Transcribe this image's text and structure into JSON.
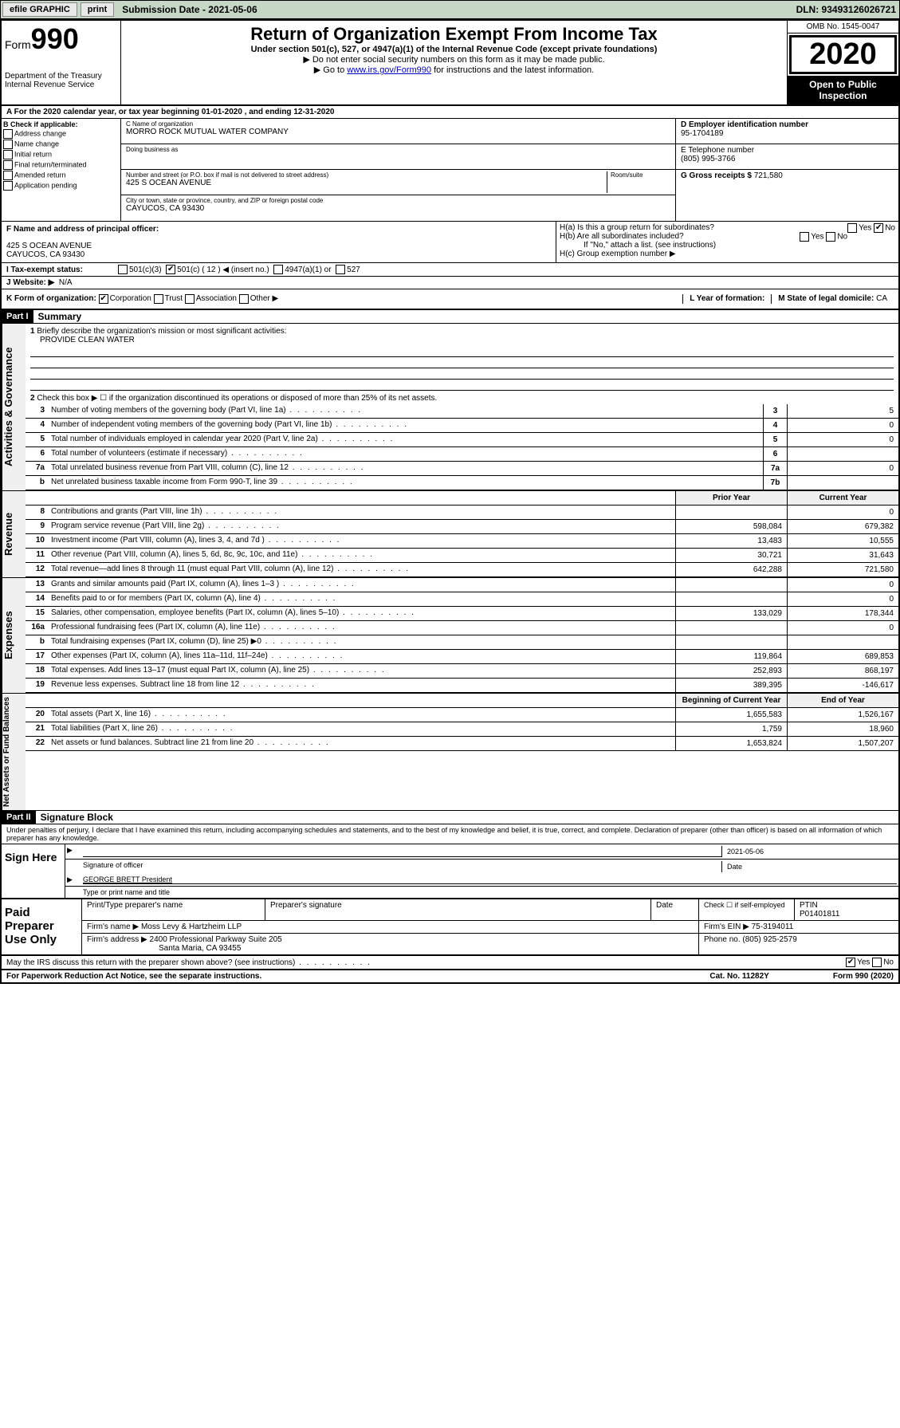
{
  "topbar": {
    "efile": "efile GRAPHIC",
    "print": "print",
    "subdate_label": "Submission Date - 2021-05-06",
    "dln": "DLN: 93493126026721"
  },
  "header": {
    "form_label": "Form",
    "form_num": "990",
    "dept": "Department of the Treasury\nInternal Revenue Service",
    "title": "Return of Organization Exempt From Income Tax",
    "subtitle": "Under section 501(c), 527, or 4947(a)(1) of the Internal Revenue Code (except private foundations)",
    "note1": "▶ Do not enter social security numbers on this form as it may be made public.",
    "note2_pre": "▶ Go to ",
    "note2_link": "www.irs.gov/Form990",
    "note2_post": " for instructions and the latest information.",
    "omb": "OMB No. 1545-0047",
    "year": "2020",
    "inspect": "Open to Public Inspection"
  },
  "row_a": "A For the 2020 calendar year, or tax year beginning 01-01-2020   , and ending 12-31-2020",
  "b": {
    "label": "B Check if applicable:",
    "items": [
      "Address change",
      "Name change",
      "Initial return",
      "Final return/terminated",
      "Amended return",
      "Application pending"
    ]
  },
  "c": {
    "name_label": "C Name of organization",
    "name": "MORRO ROCK MUTUAL WATER COMPANY",
    "dba_label": "Doing business as",
    "addr_label": "Number and street (or P.O. box if mail is not delivered to street address)",
    "room_label": "Room/suite",
    "addr": "425 S OCEAN AVENUE",
    "city_label": "City or town, state or province, country, and ZIP or foreign postal code",
    "city": "CAYUCOS, CA  93430"
  },
  "d": {
    "ein_label": "D Employer identification number",
    "ein": "95-1704189",
    "tel_label": "E Telephone number",
    "tel": "(805) 995-3766",
    "gross_label": "G Gross receipts $",
    "gross": "721,580"
  },
  "f": {
    "label": "F  Name and address of principal officer:",
    "addr1": "425 S OCEAN AVENUE",
    "addr2": "CAYUCOS, CA  93430"
  },
  "h": {
    "a_label": "H(a)  Is this a group return for subordinates?",
    "b_label": "H(b)  Are all subordinates included?",
    "b_note": "If \"No,\" attach a list. (see instructions)",
    "c_label": "H(c)  Group exemption number ▶"
  },
  "i": {
    "label": "I Tax-exempt status:",
    "opts": [
      "501(c)(3)",
      "501(c) ( 12 ) ◀ (insert no.)",
      "4947(a)(1) or",
      "527"
    ]
  },
  "j": {
    "label": "J Website: ▶",
    "val": "N/A"
  },
  "k": {
    "label": "K Form of organization:",
    "opts": [
      "Corporation",
      "Trust",
      "Association",
      "Other ▶"
    ],
    "l_label": "L Year of formation:",
    "m_label": "M State of legal domicile:",
    "m_val": "CA"
  },
  "part1": {
    "hdr": "Part I",
    "title": "Summary",
    "q1": "Briefly describe the organization's mission or most significant activities:",
    "q1_val": "PROVIDE CLEAN WATER",
    "q2": "Check this box ▶ ☐ if the organization discontinued its operations or disposed of more than 25% of its net assets.",
    "sidebars": {
      "gov": "Activities & Governance",
      "rev": "Revenue",
      "exp": "Expenses",
      "net": "Net Assets or Fund Balances"
    },
    "col_prior": "Prior Year",
    "col_curr": "Current Year",
    "col_beg": "Beginning of Current Year",
    "col_end": "End of Year",
    "lines_gov": [
      {
        "n": "3",
        "d": "Number of voting members of the governing body (Part VI, line 1a)",
        "box": "3",
        "v": "5"
      },
      {
        "n": "4",
        "d": "Number of independent voting members of the governing body (Part VI, line 1b)",
        "box": "4",
        "v": "0"
      },
      {
        "n": "5",
        "d": "Total number of individuals employed in calendar year 2020 (Part V, line 2a)",
        "box": "5",
        "v": "0"
      },
      {
        "n": "6",
        "d": "Total number of volunteers (estimate if necessary)",
        "box": "6",
        "v": ""
      },
      {
        "n": "7a",
        "d": "Total unrelated business revenue from Part VIII, column (C), line 12",
        "box": "7a",
        "v": "0"
      },
      {
        "n": "b",
        "d": "Net unrelated business taxable income from Form 990-T, line 39",
        "box": "7b",
        "v": ""
      }
    ],
    "lines_rev": [
      {
        "n": "8",
        "d": "Contributions and grants (Part VIII, line 1h)",
        "p": "",
        "c": "0"
      },
      {
        "n": "9",
        "d": "Program service revenue (Part VIII, line 2g)",
        "p": "598,084",
        "c": "679,382"
      },
      {
        "n": "10",
        "d": "Investment income (Part VIII, column (A), lines 3, 4, and 7d )",
        "p": "13,483",
        "c": "10,555"
      },
      {
        "n": "11",
        "d": "Other revenue (Part VIII, column (A), lines 5, 6d, 8c, 9c, 10c, and 11e)",
        "p": "30,721",
        "c": "31,643"
      },
      {
        "n": "12",
        "d": "Total revenue—add lines 8 through 11 (must equal Part VIII, column (A), line 12)",
        "p": "642,288",
        "c": "721,580"
      }
    ],
    "lines_exp": [
      {
        "n": "13",
        "d": "Grants and similar amounts paid (Part IX, column (A), lines 1–3 )",
        "p": "",
        "c": "0"
      },
      {
        "n": "14",
        "d": "Benefits paid to or for members (Part IX, column (A), line 4)",
        "p": "",
        "c": "0"
      },
      {
        "n": "15",
        "d": "Salaries, other compensation, employee benefits (Part IX, column (A), lines 5–10)",
        "p": "133,029",
        "c": "178,344"
      },
      {
        "n": "16a",
        "d": "Professional fundraising fees (Part IX, column (A), line 11e)",
        "p": "",
        "c": "0"
      },
      {
        "n": "b",
        "d": "Total fundraising expenses (Part IX, column (D), line 25) ▶0",
        "p": "",
        "c": ""
      },
      {
        "n": "17",
        "d": "Other expenses (Part IX, column (A), lines 11a–11d, 11f–24e)",
        "p": "119,864",
        "c": "689,853"
      },
      {
        "n": "18",
        "d": "Total expenses. Add lines 13–17 (must equal Part IX, column (A), line 25)",
        "p": "252,893",
        "c": "868,197"
      },
      {
        "n": "19",
        "d": "Revenue less expenses. Subtract line 18 from line 12",
        "p": "389,395",
        "c": "-146,617"
      }
    ],
    "lines_net": [
      {
        "n": "20",
        "d": "Total assets (Part X, line 16)",
        "p": "1,655,583",
        "c": "1,526,167"
      },
      {
        "n": "21",
        "d": "Total liabilities (Part X, line 26)",
        "p": "1,759",
        "c": "18,960"
      },
      {
        "n": "22",
        "d": "Net assets or fund balances. Subtract line 21 from line 20",
        "p": "1,653,824",
        "c": "1,507,207"
      }
    ]
  },
  "part2": {
    "hdr": "Part II",
    "title": "Signature Block",
    "perjury": "Under penalties of perjury, I declare that I have examined this return, including accompanying schedules and statements, and to the best of my knowledge and belief, it is true, correct, and complete. Declaration of preparer (other than officer) is based on all information of which preparer has any knowledge.",
    "sign_here": "Sign Here",
    "sig_officer": "Signature of officer",
    "sig_date": "2021-05-06",
    "date_label": "Date",
    "officer_name": "GEORGE BRETT President",
    "type_name": "Type or print name and title"
  },
  "prep": {
    "label": "Paid Preparer Use Only",
    "h_name": "Print/Type preparer's name",
    "h_sig": "Preparer's signature",
    "h_date": "Date",
    "h_self": "Check ☐ if self-employed",
    "h_ptin": "PTIN",
    "ptin": "P01401811",
    "firm_label": "Firm's name    ▶",
    "firm": "Moss Levy & Hartzheim LLP",
    "ein_label": "Firm's EIN ▶",
    "ein": "75-3194011",
    "addr_label": "Firm's address ▶",
    "addr1": "2400 Professional Parkway Suite 205",
    "addr2": "Santa Maria, CA  93455",
    "phone_label": "Phone no.",
    "phone": "(805) 925-2579"
  },
  "discuss": "May the IRS discuss this return with the preparer shown above? (see instructions)",
  "footer": {
    "pra": "For Paperwork Reduction Act Notice, see the separate instructions.",
    "cat": "Cat. No. 11282Y",
    "form": "Form 990 (2020)"
  }
}
